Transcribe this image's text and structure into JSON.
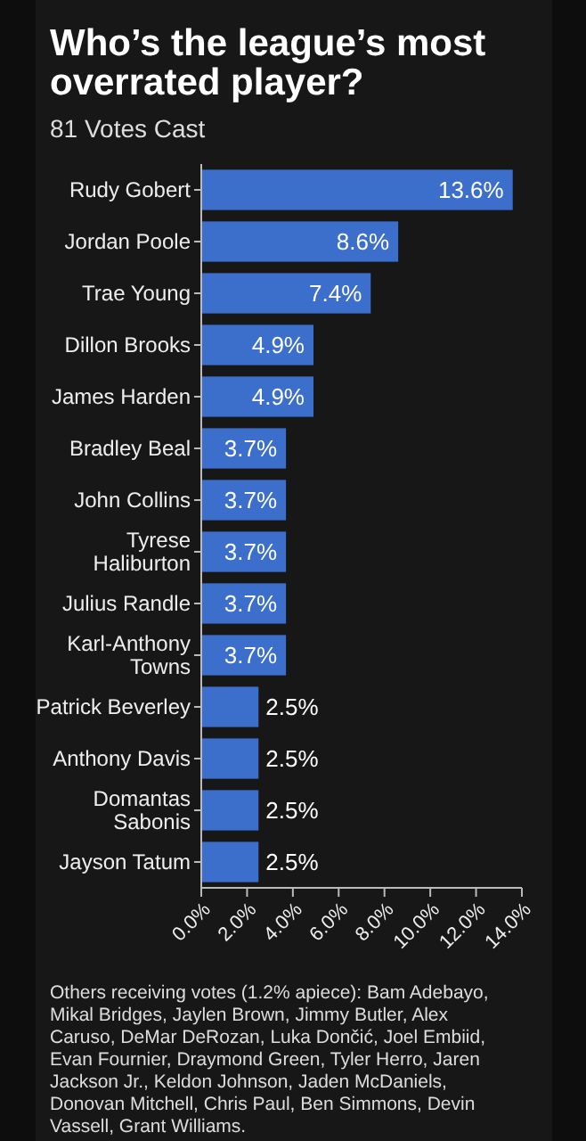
{
  "chart_data": {
    "type": "bar",
    "orientation": "horizontal",
    "title": "Who’s the league’s most overrated player?",
    "subtitle": "81 Votes Cast",
    "categories": [
      "Rudy Gobert",
      "Jordan Poole",
      "Trae Young",
      "Dillon Brooks",
      "James Harden",
      "Bradley Beal",
      "John Collins",
      "Tyrese Haliburton",
      "Julius Randle",
      "Karl-Anthony Towns",
      "Patrick Beverley",
      "Anthony Davis",
      "Domantas Sabonis",
      "Jayson Tatum"
    ],
    "values": [
      13.6,
      8.6,
      7.4,
      4.9,
      4.9,
      3.7,
      3.7,
      3.7,
      3.7,
      3.7,
      2.5,
      2.5,
      2.5,
      2.5
    ],
    "color": "#3b6fcb",
    "value_labels": [
      "13.6%",
      "8.6%",
      "7.4%",
      "4.9%",
      "4.9%",
      "3.7%",
      "3.7%",
      "3.7%",
      "3.7%",
      "3.7%",
      "2.5%",
      "2.5%",
      "2.5%",
      "2.5%"
    ],
    "xlim": [
      0,
      14
    ],
    "xticks": [
      {
        "value": 0,
        "label": "0.0%"
      },
      {
        "value": 2,
        "label": "2.0%"
      },
      {
        "value": 4,
        "label": "4.0%"
      },
      {
        "value": 6,
        "label": "6.0%"
      },
      {
        "value": 8,
        "label": "8.0%"
      },
      {
        "value": 10,
        "label": "10.0%"
      },
      {
        "value": 12,
        "label": "12.0%"
      },
      {
        "value": 14,
        "label": "14.0%"
      }
    ],
    "grid": false,
    "annotations": [
      "Others receiving votes (1.2% apiece): Bam Adebayo, Mikal Bridges, Jaylen Brown, Jimmy Butler, Alex Caruso, DeMar DeRozan, Luka Dončić, Joel Embiid, Evan Fournier, Draymond Green, Tyler Herro, Jaren Jackson Jr., Keldon Johnson, Jaden McDaniels, Donovan Mitchell, Chris Paul, Ben Simmons, Devin Vassell, Grant Williams."
    ]
  }
}
